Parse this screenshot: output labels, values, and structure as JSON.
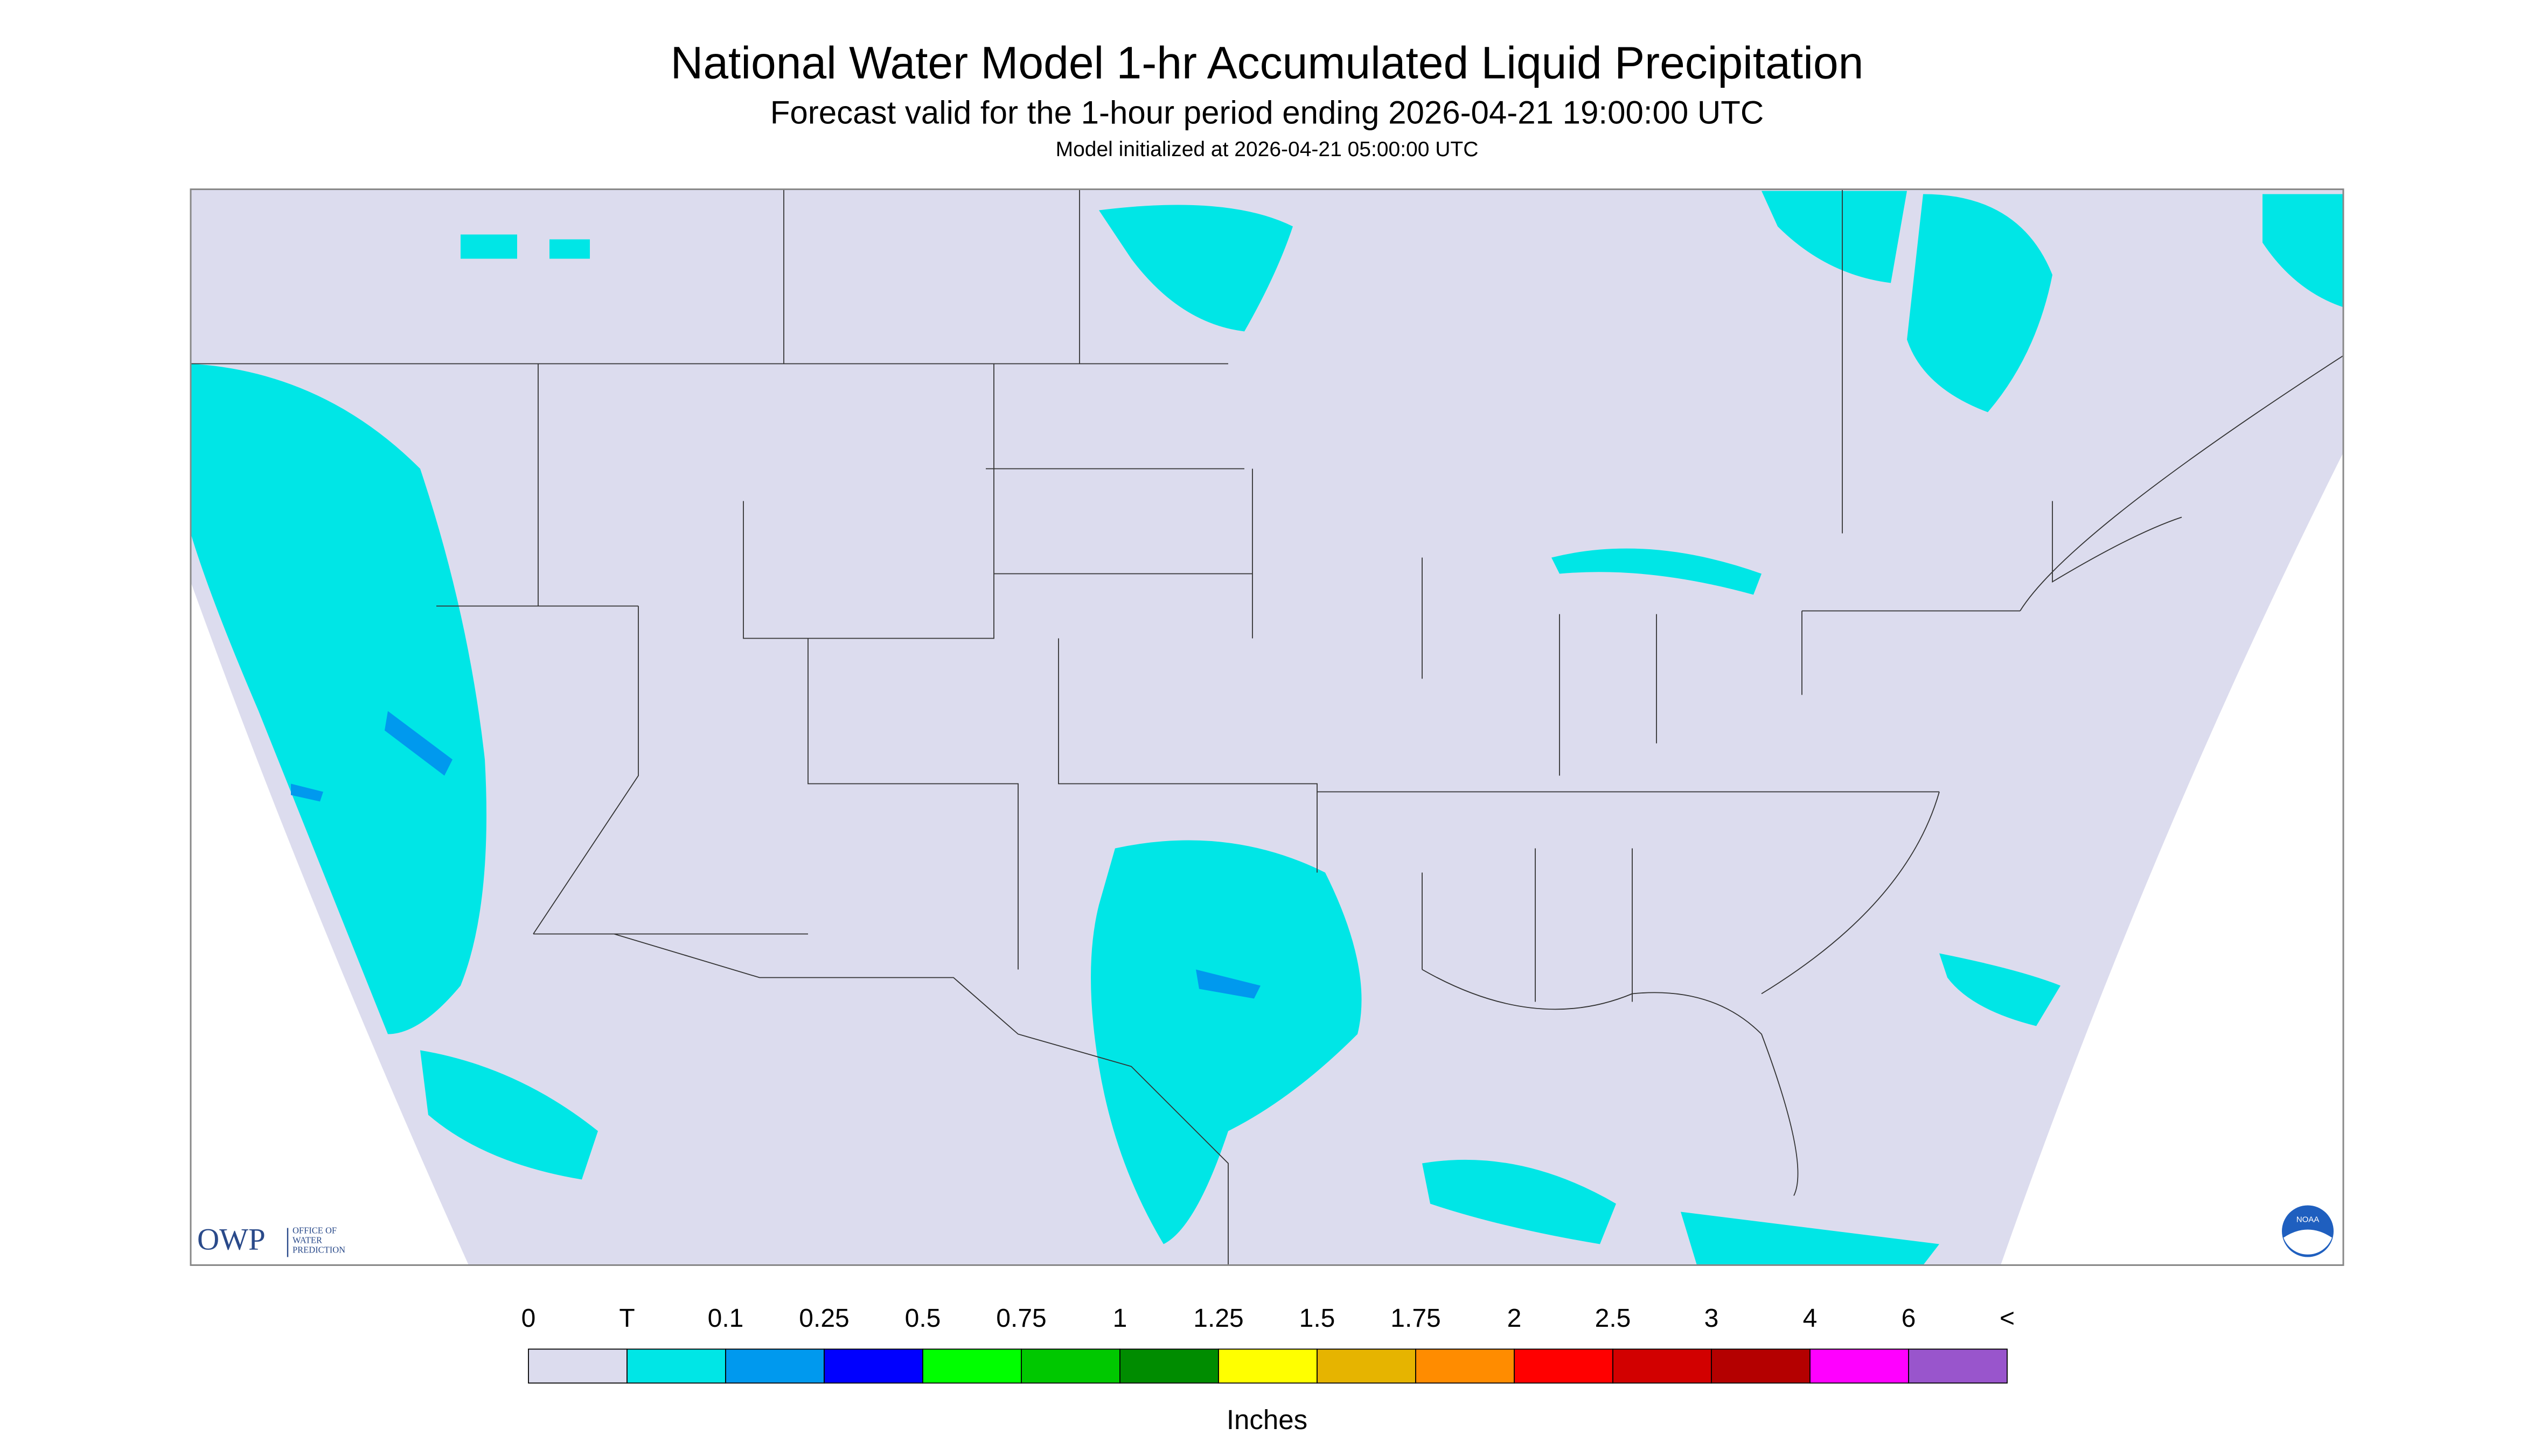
{
  "header": {
    "title": "National Water Model 1-hr Accumulated Liquid Precipitation",
    "subtitle": "Forecast valid for the 1-hour period ending 2026-04-21 19:00:00 UTC",
    "init": "Model initialized at 2026-04-21 05:00:00 UTC"
  },
  "logo": {
    "short": "OWP",
    "long": [
      "OFFICE OF",
      "WATER",
      "PREDICTION"
    ],
    "noaa": "NOAA"
  },
  "legend": {
    "labels": [
      "0",
      "T",
      "0.1",
      "0.25",
      "0.5",
      "0.75",
      "1",
      "1.25",
      "1.5",
      "1.75",
      "2",
      "2.5",
      "3",
      "4",
      "6",
      "<"
    ],
    "colors": [
      "#dcdcee",
      "#00e6e6",
      "#0099ee",
      "#0000ff",
      "#00ff00",
      "#00c800",
      "#008c00",
      "#ffff00",
      "#e6b400",
      "#ff8c00",
      "#ff0000",
      "#d20000",
      "#b40000",
      "#ff00ff",
      "#9955cc"
    ],
    "unit": "Inches"
  }
}
